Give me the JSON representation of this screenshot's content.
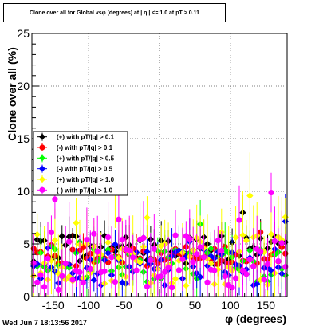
{
  "timestamp": "Wed Jun  7 18:13:56 2017",
  "chart_data": {
    "type": "scatter",
    "title": "Clone  over all for Global vsφ (degrees) at | η | <= 1.0 at pT > 0.11",
    "xlabel": "φ (degrees)",
    "ylabel": "Clone  over all (%)",
    "xlim": [
      -180,
      180
    ],
    "ylim": [
      0,
      25
    ],
    "xticks": [
      -150,
      -100,
      -50,
      0,
      50,
      100,
      150
    ],
    "yticks": [
      0,
      5,
      10,
      15,
      20,
      25
    ],
    "grid": true,
    "legend_position": "left",
    "series": [
      {
        "name": "(+) with pT/|q| > 0.1",
        "color": "#000000",
        "marker": "diamond",
        "base": 4.5,
        "noise": 0.9,
        "err": 1.3
      },
      {
        "name": "(-) with pT/|q| > 0.1",
        "color": "#ff0000",
        "marker": "circle",
        "base": 3.8,
        "noise": 0.6,
        "err": 1.2
      },
      {
        "name": "(+) with pT/|q| > 0.5",
        "color": "#00ff00",
        "marker": "diamond",
        "base": 3.0,
        "noise": 1.0,
        "err": 1.8
      },
      {
        "name": "(-) with pT/|q| > 0.5",
        "color": "#0000ff",
        "marker": "diamond",
        "base": 2.8,
        "noise": 1.1,
        "err": 2.0
      },
      {
        "name": "(+) with pT/|q| > 1.0",
        "color": "#ffff00",
        "marker": "diamond",
        "base": 3.6,
        "noise": 1.6,
        "err": 2.8
      },
      {
        "name": "(-) with pT/|q| > 1.0",
        "color": "#ff00ff",
        "marker": "circle",
        "base": 3.4,
        "noise": 1.8,
        "err": 2.6
      }
    ]
  }
}
